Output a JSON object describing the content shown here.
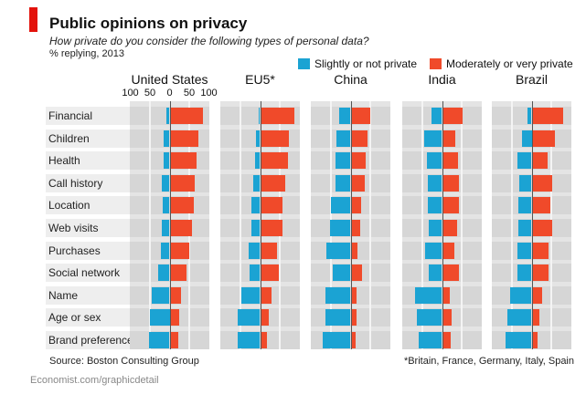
{
  "title": "Public opinions on privacy",
  "subtitle": "How private do you consider the following types of personal data?",
  "unit": "% replying, 2013",
  "legend": [
    {
      "label": "Slightly or not private",
      "color": "#1ba3d3"
    },
    {
      "label": "Moderately or very private",
      "color": "#f04a2a"
    }
  ],
  "source": "Source: Boston Consulting Group",
  "footnote": "*Britain, France, Germany, Italy, Spain",
  "credit": "Economist.com/graphicdetail",
  "chart_data": {
    "type": "bar",
    "orientation": "horizontal diverging",
    "categories": [
      "Financial",
      "Children",
      "Health",
      "Call history",
      "Location",
      "Web visits",
      "Purchases",
      "Social network",
      "Name",
      "Age or sex",
      "Brand preferences"
    ],
    "tick_labels": [
      "100",
      "50",
      "0",
      "50",
      "100"
    ],
    "xlim": [
      -100,
      100
    ],
    "panels": [
      {
        "title": "United States",
        "slightly": [
          7,
          14,
          15,
          19,
          17,
          20,
          22,
          29,
          46,
          50,
          53
        ],
        "moderately": [
          85,
          74,
          68,
          64,
          62,
          57,
          50,
          43,
          29,
          25,
          22
        ]
      },
      {
        "title": "EU5*",
        "slightly": [
          4,
          11,
          12,
          18,
          22,
          22,
          29,
          27,
          48,
          57,
          58
        ],
        "moderately": [
          88,
          74,
          70,
          65,
          58,
          56,
          43,
          48,
          29,
          21,
          18
        ]
      },
      {
        "title": "China",
        "slightly": [
          28,
          36,
          39,
          38,
          49,
          52,
          62,
          46,
          65,
          65,
          71
        ],
        "moderately": [
          49,
          44,
          38,
          37,
          26,
          24,
          17,
          28,
          16,
          15,
          12
        ]
      },
      {
        "title": "India",
        "slightly": [
          27,
          46,
          38,
          35,
          35,
          34,
          42,
          34,
          68,
          64,
          59
        ],
        "moderately": [
          53,
          33,
          40,
          42,
          42,
          38,
          32,
          43,
          19,
          24,
          22
        ]
      },
      {
        "title": "Brazil",
        "slightly": [
          11,
          25,
          37,
          32,
          34,
          34,
          35,
          37,
          55,
          62,
          67
        ],
        "moderately": [
          80,
          59,
          41,
          52,
          48,
          52,
          42,
          42,
          26,
          19,
          15
        ]
      }
    ]
  }
}
